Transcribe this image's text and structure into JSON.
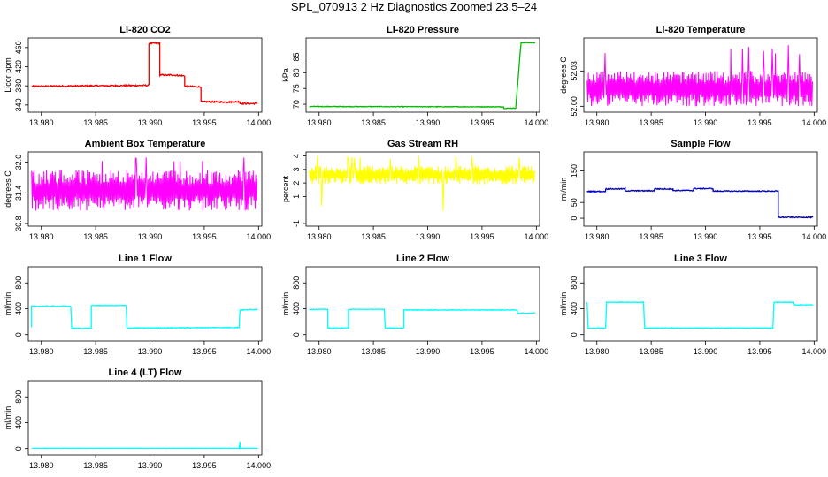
{
  "title": "SPL_070913  2 Hz Diagnostics Zoomed 23.5–24",
  "colors": {
    "red": "#ee0000",
    "green": "#00bb00",
    "magenta": "#ff00ff",
    "yellow": "#ffff00",
    "blue": "#0000cc",
    "cyan": "#00ffff"
  },
  "chart_data": [
    {
      "type": "line",
      "title": "Li-820 CO2",
      "xlabel": "",
      "ylabel": "Licor ppm",
      "xlim": [
        13.9788,
        14.0003
      ],
      "ylim": [
        325,
        480
      ],
      "xticks": [
        "13.980",
        "13.985",
        "13.990",
        "13.995",
        "14.000"
      ],
      "yticks": [
        "340",
        "380",
        "420",
        "460"
      ],
      "series": [
        {
          "color": "red",
          "noise": 1.5,
          "x": [
            13.9791,
            13.9899,
            13.9899,
            13.9909,
            13.9909,
            13.9917,
            13.9917,
            13.9932,
            13.9932,
            13.9947,
            13.9947,
            13.997,
            13.997,
            13.9983,
            13.9983,
            13.9999
          ],
          "y": [
            379,
            381,
            469,
            469,
            403,
            402,
            403,
            401,
            379,
            378,
            347,
            346,
            346,
            347,
            343,
            343
          ]
        }
      ]
    },
    {
      "type": "line",
      "title": "Li-820 Pressure",
      "xlabel": "",
      "ylabel": "kPa",
      "xlim": [
        13.9788,
        14.0003
      ],
      "ylim": [
        67.5,
        91
      ],
      "xticks": [
        "13.980",
        "13.985",
        "13.990",
        "13.995",
        "14.000"
      ],
      "yticks": [
        "70",
        "75",
        "80",
        "85"
      ],
      "series": [
        {
          "color": "green",
          "noise": 0.1,
          "x": [
            13.9791,
            13.997,
            13.997,
            13.9981,
            13.9983,
            13.9985,
            13.9986,
            13.9999
          ],
          "y": [
            69.3,
            69.2,
            68.7,
            68.8,
            77,
            86,
            89.5,
            89.5
          ]
        }
      ]
    },
    {
      "type": "noise-band",
      "title": "Li-820 Temperature",
      "xlabel": "",
      "ylabel": "degrees C",
      "xlim": [
        13.9788,
        14.0003
      ],
      "ylim": [
        51.995,
        52.058
      ],
      "xticks": [
        "13.980",
        "13.985",
        "13.990",
        "13.995",
        "14.000"
      ],
      "yticks": [
        "52.00",
        "52.03"
      ],
      "series": [
        {
          "color": "magenta",
          "low": 52.0,
          "high": 52.03,
          "spike": 52.052,
          "x": [
            13.9791,
            13.9999
          ]
        }
      ]
    },
    {
      "type": "noise-band",
      "title": "Ambient Box Temperature",
      "xlabel": "",
      "ylabel": "degrees C",
      "xlim": [
        13.9788,
        14.0003
      ],
      "ylim": [
        30.75,
        32.2
      ],
      "xticks": [
        "13.980",
        "13.985",
        "13.990",
        "13.995",
        "14.000"
      ],
      "yticks": [
        "30.8",
        "31.4",
        "32.0"
      ],
      "series": [
        {
          "color": "magenta",
          "low": 31.05,
          "high": 31.85,
          "spike": 32.1,
          "x": [
            13.9791,
            13.9999
          ]
        }
      ]
    },
    {
      "type": "noise-band",
      "title": "Gas Stream RH",
      "xlabel": "",
      "ylabel": "percent",
      "xlim": [
        13.9788,
        14.0003
      ],
      "ylim": [
        -1.2,
        4.3
      ],
      "xticks": [
        "13.980",
        "13.985",
        "13.990",
        "13.995",
        "14.000"
      ],
      "yticks": [
        "-1",
        "1",
        "2",
        "3",
        "4"
      ],
      "series": [
        {
          "color": "yellow",
          "low": 1.9,
          "high": 3.3,
          "spike": 4.0,
          "dip": -0.6,
          "x": [
            13.9791,
            13.9999
          ]
        }
      ]
    },
    {
      "type": "line",
      "title": "Sample Flow",
      "xlabel": "",
      "ylabel": "ml/min",
      "xlim": [
        13.9788,
        14.0003
      ],
      "ylim": [
        -25,
        210
      ],
      "xticks": [
        "13.980",
        "13.985",
        "13.990",
        "13.995",
        "14.000"
      ],
      "yticks": [
        "0",
        "50",
        "150"
      ],
      "series": [
        {
          "color": "blue",
          "noise": 1.5,
          "x": [
            13.9791,
            13.9808,
            13.9808,
            13.9826,
            13.9826,
            13.9853,
            13.9853,
            13.987,
            13.987,
            13.9889,
            13.9889,
            13.9907,
            13.9907,
            13.9967,
            13.9967,
            13.9999
          ],
          "y": [
            85,
            85,
            93,
            93,
            87,
            87,
            93,
            93,
            88,
            88,
            94,
            94,
            86,
            86,
            3,
            3
          ]
        }
      ]
    },
    {
      "type": "line",
      "title": "Line 1 Flow",
      "xlabel": "",
      "ylabel": "ml/min",
      "xlim": [
        13.9788,
        14.0003
      ],
      "ylim": [
        -100,
        1050
      ],
      "xticks": [
        "13.980",
        "13.985",
        "13.990",
        "13.995",
        "14.000"
      ],
      "yticks": [
        "0",
        "400",
        "800"
      ],
      "series": [
        {
          "color": "cyan",
          "noise": 6,
          "x": [
            13.9791,
            13.9791,
            13.9827,
            13.9828,
            13.9846,
            13.9846,
            13.9878,
            13.9879,
            13.9982,
            13.9983,
            13.9999
          ],
          "y": [
            110,
            440,
            440,
            95,
            95,
            450,
            450,
            100,
            110,
            380,
            390
          ]
        }
      ]
    },
    {
      "type": "line",
      "title": "Line 2 Flow",
      "xlabel": "",
      "ylabel": "ml/min",
      "xlim": [
        13.9788,
        14.0003
      ],
      "ylim": [
        -100,
        1050
      ],
      "xticks": [
        "13.980",
        "13.985",
        "13.990",
        "13.995",
        "14.000"
      ],
      "yticks": [
        "0",
        "400",
        "800"
      ],
      "series": [
        {
          "color": "cyan",
          "noise": 5,
          "x": [
            13.9791,
            13.9808,
            13.9808,
            13.9827,
            13.9827,
            13.986,
            13.9861,
            13.9878,
            13.9878,
            13.9982,
            13.9983,
            13.9999
          ],
          "y": [
            390,
            390,
            100,
            100,
            390,
            390,
            100,
            100,
            380,
            380,
            330,
            335
          ]
        }
      ]
    },
    {
      "type": "line",
      "title": "Line 3 Flow",
      "xlabel": "",
      "ylabel": "ml/min",
      "xlim": [
        13.9788,
        14.0003
      ],
      "ylim": [
        -100,
        1050
      ],
      "xticks": [
        "13.980",
        "13.985",
        "13.990",
        "13.995",
        "14.000"
      ],
      "yticks": [
        "0",
        "400",
        "800"
      ],
      "series": [
        {
          "color": "cyan",
          "noise": 5,
          "x": [
            13.9791,
            13.9791,
            13.9792,
            13.9808,
            13.9809,
            13.9843,
            13.9844,
            13.9962,
            13.9963,
            13.9981,
            13.9982,
            13.9999
          ],
          "y": [
            500,
            500,
            100,
            100,
            500,
            500,
            100,
            100,
            500,
            500,
            460,
            460
          ]
        }
      ]
    },
    {
      "type": "line",
      "title": "Line 4 (LT) Flow",
      "xlabel": "",
      "ylabel": "ml/min",
      "xlim": [
        13.9788,
        14.0003
      ],
      "ylim": [
        -100,
        1050
      ],
      "xticks": [
        "13.980",
        "13.985",
        "13.990",
        "13.995",
        "14.000"
      ],
      "yticks": [
        "0",
        "400",
        "800"
      ],
      "series": [
        {
          "color": "cyan",
          "noise": 2,
          "x": [
            13.9791,
            13.9982,
            13.9983,
            13.9983,
            13.9984,
            13.9999
          ],
          "y": [
            3,
            3,
            110,
            3,
            3,
            3
          ]
        }
      ]
    }
  ]
}
